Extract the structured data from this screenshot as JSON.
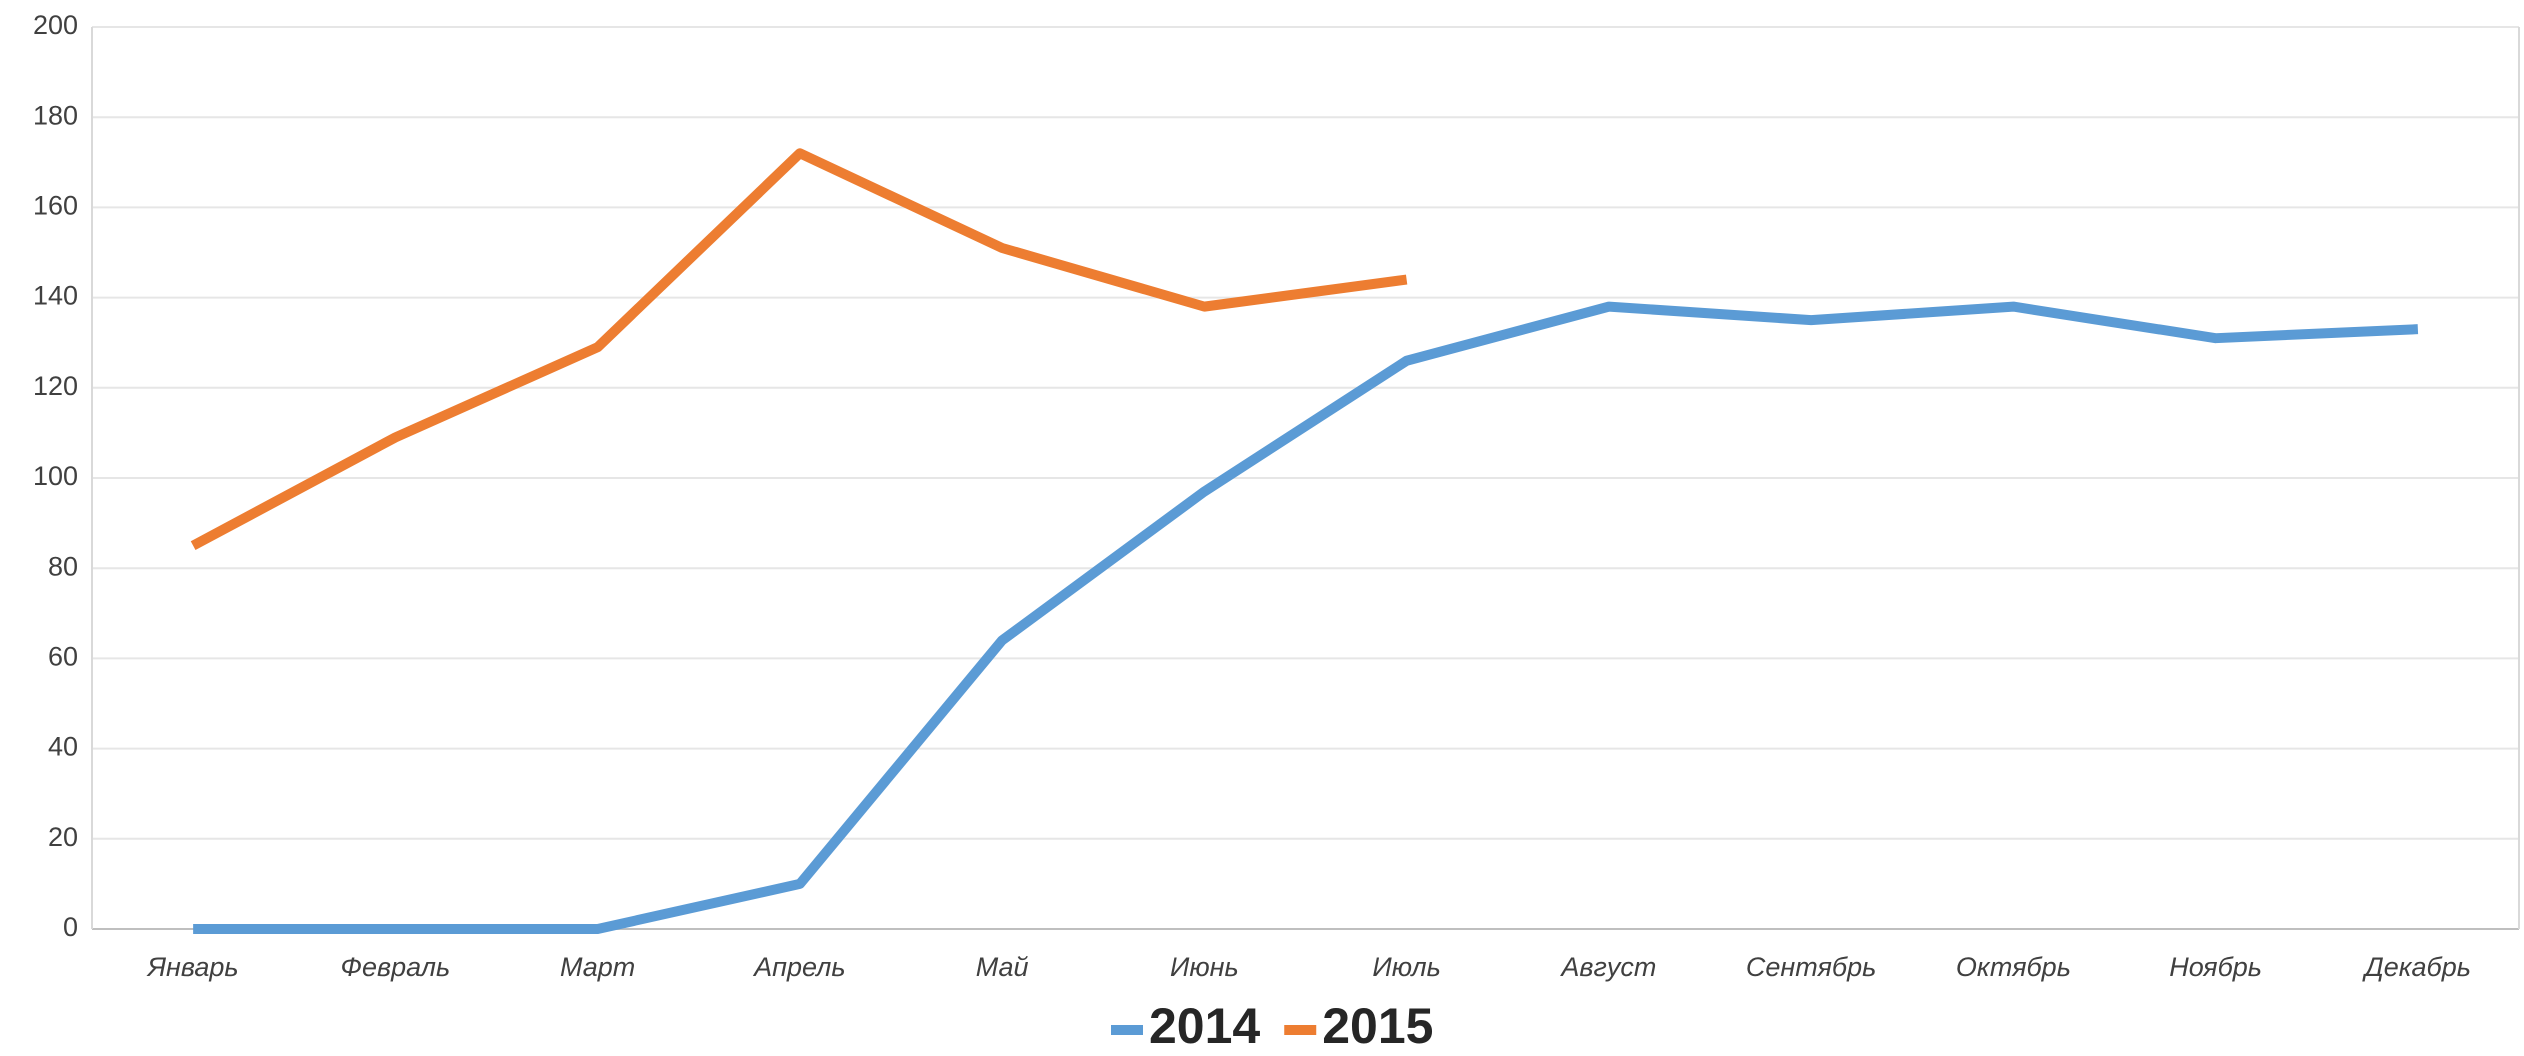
{
  "chart_data": {
    "type": "line",
    "categories": [
      "Январь",
      "Февраль",
      "Март",
      "Апрель",
      "Май",
      "Июнь",
      "Июль",
      "Август",
      "Сентябрь",
      "Октябрь",
      "Ноябрь",
      "Декабрь"
    ],
    "series": [
      {
        "name": "2014",
        "color": "#5b9bd5",
        "values": [
          0,
          0,
          0,
          10,
          64,
          97,
          126,
          138,
          135,
          138,
          131,
          133
        ]
      },
      {
        "name": "2015",
        "color": "#ed7d31",
        "values": [
          85,
          109,
          129,
          172,
          151,
          138,
          144,
          null,
          null,
          null,
          null,
          null
        ]
      }
    ],
    "ylim": [
      0,
      200
    ],
    "yticks": [
      0,
      20,
      40,
      60,
      80,
      100,
      120,
      140,
      160,
      180,
      200
    ],
    "grid": true,
    "legend": "bottom"
  }
}
